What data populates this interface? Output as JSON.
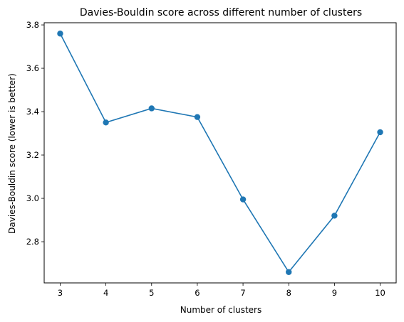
{
  "chart_data": {
    "type": "line",
    "title": "Davies-Bouldin score across different number of clusters",
    "xlabel": "Number of clusters",
    "ylabel": "Davies-Bouldin score (lower is better)",
    "x": [
      3,
      4,
      5,
      6,
      7,
      8,
      9,
      10
    ],
    "series": [
      {
        "values": [
          3.76,
          3.35,
          3.415,
          3.375,
          2.995,
          2.66,
          2.92,
          3.305
        ],
        "color": "#1f77b4",
        "marker": "circle"
      }
    ],
    "xlim": [
      2.65,
      10.35
    ],
    "ylim": [
      2.61,
      3.81
    ],
    "xticks": [
      "3",
      "4",
      "5",
      "6",
      "7",
      "8",
      "9",
      "10"
    ],
    "yticks": [
      "2.8",
      "3.0",
      "3.2",
      "3.4",
      "3.6",
      "3.8"
    ],
    "grid": false,
    "legend": "none"
  }
}
